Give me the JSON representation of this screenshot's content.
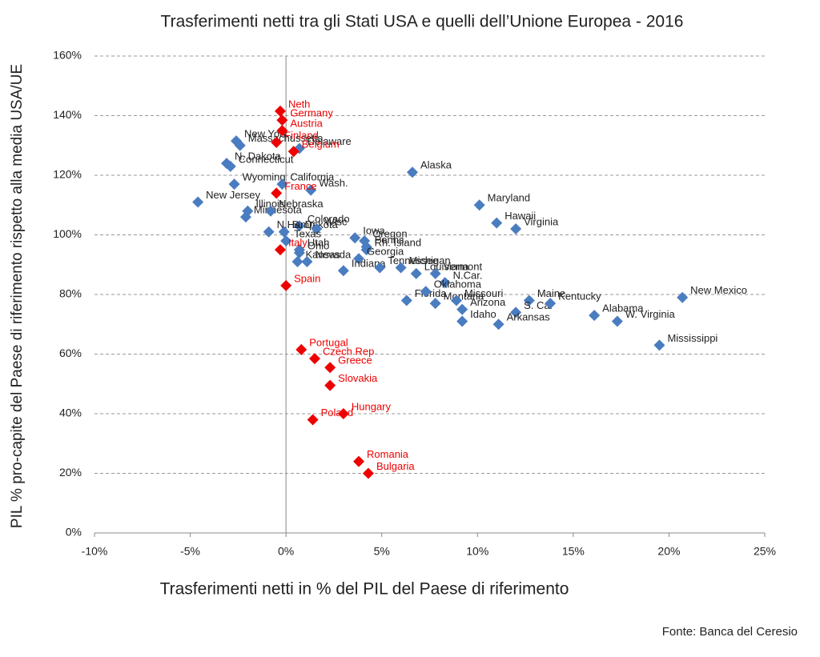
{
  "chart_data": {
    "type": "scatter",
    "title": "Trasferimenti netti tra gli Stati USA e quelli dell’Unione Europea - 2016",
    "x_label": "Trasferimenti netti in % del PIL del Paese di riferimento",
    "y_label": "PIL % pro-capite del Paese di riferimento rispetto alla media USA/UE",
    "source": "Fonte: Banca del Ceresio",
    "xlim": [
      -10,
      25
    ],
    "xticks": [
      {
        "value": -10,
        "label": "-10%"
      },
      {
        "value": -5,
        "label": "-5%"
      },
      {
        "value": 0,
        "label": "0%"
      },
      {
        "value": 5,
        "label": "5%"
      },
      {
        "value": 10,
        "label": "10%"
      },
      {
        "value": 15,
        "label": "15%"
      },
      {
        "value": 20,
        "label": "20%"
      },
      {
        "value": 25,
        "label": "25%"
      }
    ],
    "ylim": [
      0,
      160
    ],
    "yticks": [
      {
        "value": 0,
        "label": "0%"
      },
      {
        "value": 20,
        "label": "20%"
      },
      {
        "value": 40,
        "label": "40%"
      },
      {
        "value": 60,
        "label": "60%"
      },
      {
        "value": 80,
        "label": "80%"
      },
      {
        "value": 100,
        "label": "100%"
      },
      {
        "value": 120,
        "label": "120%"
      },
      {
        "value": 140,
        "label": "140%"
      },
      {
        "value": 160,
        "label": "160%"
      }
    ],
    "grid": true,
    "series": [
      {
        "color": "#4a7cc0",
        "label_color": "#222222",
        "labels": [
          "New York",
          "Massachussetts",
          "Delaware",
          "N. Dakota",
          "Connecticut",
          "Wyoming",
          "California",
          "Alaska",
          "Wash.",
          "New Jersey",
          "Maryland",
          "Hawaii",
          "Virginia",
          "Illinois",
          "Minnesota",
          "Nebraska",
          "Colorado",
          "N.Hamp",
          "S. Dakota",
          "Wisc",
          "Iowa",
          "Penns.",
          "Oregon",
          "Rh. Island",
          "Georgia",
          "Texas",
          "Ohio",
          "Kansas",
          "Utah",
          "Nevada",
          "Indiana",
          "Tennessee",
          "Michigan",
          "Louisiana",
          "Vermont",
          "N.Car.",
          "Florida",
          "Oklahoma",
          "Montana",
          "Missouri",
          "Arizona",
          "Idaho",
          "Maine",
          "S. Car",
          "Arkansas",
          "Kentucky",
          "Alabama",
          "W. Virginia",
          "Mississippi",
          "New Mexico"
        ],
        "x": [
          -2.6,
          -2.4,
          0.7,
          -3.1,
          -2.9,
          -2.7,
          -0.2,
          6.6,
          1.3,
          -4.6,
          10.1,
          11.0,
          12.0,
          -2.0,
          -2.1,
          -0.8,
          0.7,
          -0.9,
          -0.1,
          1.6,
          3.6,
          4.2,
          4.1,
          4.2,
          3.8,
          0.0,
          0.7,
          0.6,
          0.7,
          1.1,
          3.0,
          4.9,
          6.0,
          6.8,
          7.8,
          8.3,
          6.3,
          7.3,
          7.8,
          8.9,
          9.2,
          9.2,
          12.7,
          12.0,
          11.1,
          13.8,
          16.1,
          17.3,
          19.5,
          20.7
        ],
        "values": [
          131.5,
          130,
          129,
          124,
          123,
          117,
          117,
          121,
          115,
          111,
          110,
          104,
          102,
          108,
          106,
          108,
          103,
          101,
          101,
          102,
          99,
          96,
          98,
          95,
          92,
          98,
          94,
          91,
          95,
          91,
          88,
          89,
          89,
          87,
          87,
          84,
          78,
          81,
          77,
          78,
          75,
          71,
          78,
          74,
          70,
          77,
          73,
          71,
          63,
          79
        ]
      },
      {
        "color": "#ee0000",
        "label_color": "#ee0000",
        "labels": [
          "Neth",
          "Germany",
          "Austria",
          "Finland",
          "Belgium",
          "France",
          "Italy",
          "Spain",
          "Portugal",
          "Czech Rep",
          "Greece",
          "Slovakia",
          "Hungary",
          "Poland",
          "Romania",
          "Bulgaria"
        ],
        "x": [
          -0.3,
          -0.2,
          -0.2,
          -0.5,
          0.4,
          -0.5,
          -0.3,
          0.0,
          0.8,
          1.5,
          2.3,
          2.3,
          3.0,
          1.4,
          3.8,
          4.3
        ],
        "values": [
          141.5,
          138.5,
          135,
          131,
          128,
          114,
          95,
          83,
          61.5,
          58.5,
          55.5,
          49.5,
          40,
          38,
          24,
          20
        ]
      }
    ]
  }
}
